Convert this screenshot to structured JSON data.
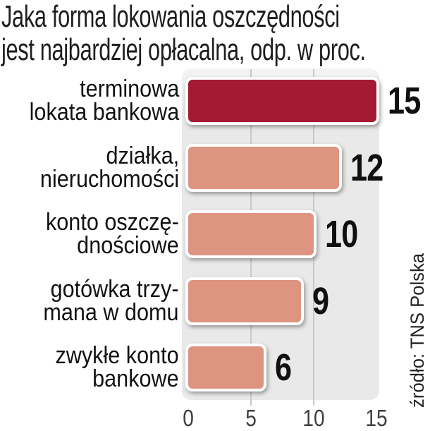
{
  "title": {
    "line1": "Jaka forma lokowania oszczędności",
    "line2": "jest najbardziej opłacalna, odp. w proc."
  },
  "source": "źródło: TNS Polska",
  "colors": {
    "highlight_bar": "#a41a31",
    "normal_bar": "#dd9480",
    "plot_background": "#e9e9e9",
    "gridline": "#c9c9c9",
    "value_text": "#101010",
    "label_text": "#121212",
    "axis_text": "#3e3e3e"
  },
  "chart_data": {
    "type": "bar",
    "orientation": "horizontal",
    "title": "Jaka forma lokowania oszczędności jest najbardziej opłacalna, odp. w proc.",
    "unit": "proc.",
    "categories": [
      "terminowa lokata bankowa",
      "działka, nieruchomości",
      "konto oszczędnościowe",
      "gotówka trzymana w domu",
      "zwykłe konto bankowe"
    ],
    "category_lines": [
      [
        "terminowa",
        "lokata bankowa"
      ],
      [
        "działka,",
        "nieruchomości"
      ],
      [
        "konto oszczę-",
        "dnościowe"
      ],
      [
        "gotówka trzy-",
        "mana w domu"
      ],
      [
        "zwykłe konto",
        "bankowe"
      ]
    ],
    "values": [
      15,
      12,
      10,
      9,
      6
    ],
    "highlight_index": 0,
    "xlim": [
      0,
      15
    ],
    "x_ticks": [
      0,
      5,
      10,
      15
    ],
    "grid_ticks": [
      5,
      10
    ],
    "legend": "none",
    "source": "źródło: TNS Polska"
  }
}
